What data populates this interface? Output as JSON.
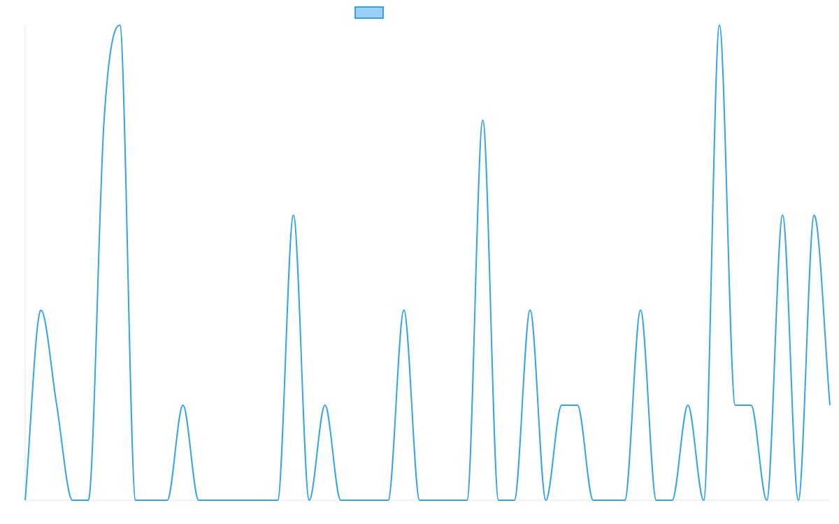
{
  "chart_data": {
    "type": "line",
    "title": "",
    "xlabel": "",
    "ylabel": "",
    "legend": {
      "placement": "top-center"
    },
    "grid": false,
    "ylim": [
      0,
      5
    ],
    "x": [
      0,
      1,
      2,
      3,
      4,
      5,
      6,
      7,
      8,
      9,
      10,
      11,
      12,
      13,
      14,
      15,
      16,
      17,
      18,
      19,
      20,
      21,
      22,
      23,
      24,
      25,
      26,
      27,
      28,
      29,
      30,
      31,
      32,
      33,
      34,
      35,
      36,
      37,
      38,
      39,
      40,
      41,
      42,
      43,
      44,
      45,
      46,
      47,
      48,
      49,
      50,
      51
    ],
    "series": [
      {
        "values": [
          0,
          2,
          1,
          0,
          0,
          4,
          5,
          0,
          0,
          0,
          1,
          0,
          0,
          0,
          0,
          0,
          0,
          3,
          0,
          1,
          0,
          0,
          0,
          0,
          2,
          0,
          0,
          0,
          0,
          4,
          0,
          0,
          2,
          0,
          1,
          1,
          0,
          0,
          0,
          2,
          0,
          0,
          1,
          0,
          5,
          1,
          1,
          0,
          3,
          0,
          3,
          1
        ],
        "color": "#36a2eb",
        "fill": "#9ad0f5"
      }
    ]
  }
}
